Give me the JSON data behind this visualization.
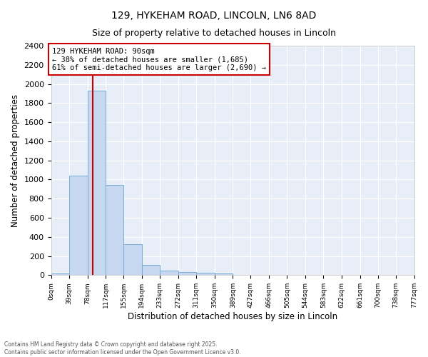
{
  "title1": "129, HYKEHAM ROAD, LINCOLN, LN6 8AD",
  "title2": "Size of property relative to detached houses in Lincoln",
  "xlabel": "Distribution of detached houses by size in Lincoln",
  "ylabel": "Number of detached properties",
  "property_size": 90,
  "annotation_line1": "129 HYKEHAM ROAD: 90sqm",
  "annotation_line2": "← 38% of detached houses are smaller (1,685)",
  "annotation_line3": "61% of semi-detached houses are larger (2,690) →",
  "bin_edges": [
    0,
    39,
    78,
    117,
    155,
    194,
    233,
    272,
    311,
    350,
    389,
    427,
    466,
    505,
    544,
    583,
    622,
    661,
    700,
    738,
    777
  ],
  "bar_heights": [
    20,
    1040,
    1930,
    940,
    325,
    110,
    50,
    30,
    25,
    20,
    0,
    0,
    0,
    0,
    0,
    0,
    0,
    0,
    0,
    0
  ],
  "bar_color": "#c5d8f0",
  "bar_edge_color": "#7aadd4",
  "red_line_color": "#cc0000",
  "annotation_box_color": "#cc0000",
  "fig_background": "#ffffff",
  "ax_background": "#e8eef7",
  "grid_color": "#ffffff",
  "ylim": [
    0,
    2400
  ],
  "yticks": [
    0,
    200,
    400,
    600,
    800,
    1000,
    1200,
    1400,
    1600,
    1800,
    2000,
    2200,
    2400
  ],
  "footer1": "Contains HM Land Registry data © Crown copyright and database right 2025.",
  "footer2": "Contains public sector information licensed under the Open Government Licence v3.0."
}
